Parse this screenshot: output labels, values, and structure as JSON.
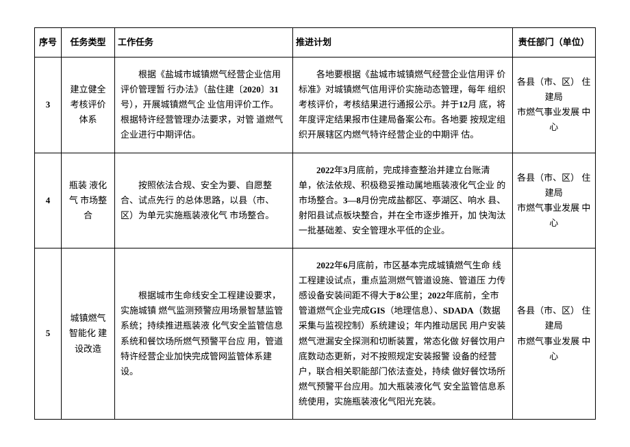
{
  "headers": {
    "seq": "序号",
    "type": "任务类型",
    "task": "工作任务",
    "plan": "推进计划",
    "dept": "责任部门（单位）"
  },
  "rows": [
    {
      "seq": "3",
      "type": "建立健全 考核评价 体系",
      "task_pre": "根据《盐城市城镇燃气经营企业信用评价管理暂  行办法》（盐住建〔",
      "task_bold1": "2020",
      "task_mid1": "〕",
      "task_bold2": "31",
      "task_post": "号），开展城镇燃气企  业信用评价工作。根据特许经营管理办法要求，对管  道燃气企业进行中期评估。",
      "plan_pre": "各地要根据《盐城市城镇燃气经营企业信用评  价标准》对城镇燃气信用评价实施动态管理，每年  组织考核评价，考核结果进行通报公示。并于",
      "plan_bold1": "12",
      "plan_post": "月  底，将年度评定结果报市住建局备案公布。各地要  按规定组织开展辖区内燃气特许经营企业的中期评  估。",
      "dept": "各县（市、区） 住建局\n市燃气事业发展 中心"
    },
    {
      "seq": "4",
      "type": "瓶装  液化气  市场整合",
      "task": "按照依法合规、安全为要、自愿整合、试点先行  的总体思路，以县（市、区）为单元实施瓶装液化气  市场整合。",
      "plan_bold1": "2022",
      "plan_t1": "年",
      "plan_bold2": "3",
      "plan_t2": "月底前，完成排查整治并建立台账清  单，依法依规、积极稳妥推动属地瓶装液化气企业  的市场整合。",
      "plan_bold3": "3—8",
      "plan_t3": "月份完成盐都区、亭湖区、响水  县、射阳县试点板块整合，并在全市逐步推开，加  快淘汰一批基础差、安全管理水平低的企业。",
      "dept": "各县（市、区） 住建局\n市燃气事业发展 中心"
    },
    {
      "seq": "5",
      "type": "城镇燃气 智能化  建设改造",
      "task": "根据城市生命线安全工程建设要求，实施城镇  燃气监测预警应用场景智慧监管系统；持续推进瓶装液  化气安全监管信息系统和餐饮场所燃气预警平台应  用，管道特许经营企业加快完成管网监管体系建设。",
      "plan_bold1": "2022",
      "plan_t1": "年",
      "plan_bold2": "6",
      "plan_t2": "月底前，市区基本完成城镇燃气生命  线工程建设试点，重点监测燃气管道设施、管道压  力传感设备安装间距不得大于",
      "plan_bold3": "8",
      "plan_t3": "公里；",
      "plan_bold4": "2022",
      "plan_t4": "年底前，全市管道燃气企业完成",
      "plan_bold5": "GIS",
      "plan_t5": "（地理信息）、",
      "plan_bold6": "SDADA",
      "plan_t6": "（数据采集与监视控制）系统建设；年内推动居民  用户安装燃气泄漏安全探测和切断装置，常态化做  好餐饮用户底数动态更新，对不按照规定安装报警  设备的经营户，联合相关职能部门依法查处，持续  做好餐饮场所燃气预警平台应用。加大瓶装液化气  安全监管信息系统使用，实施瓶装液化气阳光充装。",
      "dept": "各县（市、区） 住建局\n市燃气事业发展 中心"
    }
  ]
}
